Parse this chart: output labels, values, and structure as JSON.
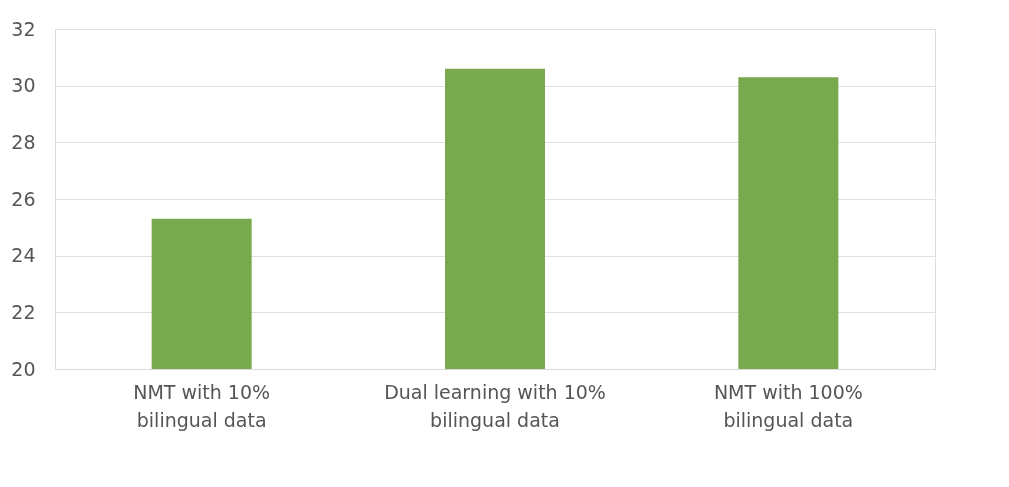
{
  "chart_data": {
    "type": "bar",
    "categories": [
      "NMT with 10%\nbilingual data",
      "Dual learning with 10%\nbilingual data",
      "NMT with 100%\nbilingual data"
    ],
    "values": [
      25.3,
      30.6,
      30.3
    ],
    "color": "#78a94e",
    "ylim": [
      20,
      32
    ],
    "yticks": [
      20,
      22,
      24,
      26,
      28,
      30,
      32
    ],
    "grid": "y"
  }
}
